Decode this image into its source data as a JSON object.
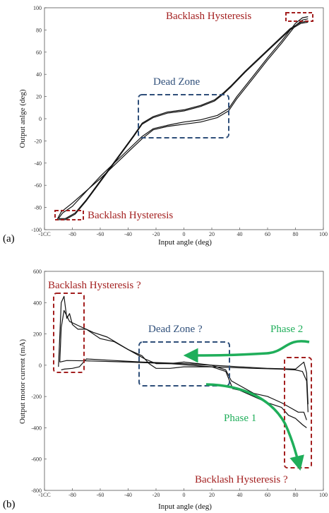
{
  "colors": {
    "trace": "#111111",
    "backlash": "#a31f1f",
    "deadzone": "#2f4f7a",
    "phase": "#1fae5a",
    "axis": "#555555"
  },
  "chart_data": [
    {
      "type": "line",
      "panel_label": "(a)",
      "xlabel": "Input angle (deg)",
      "ylabel": "Output anlge (deg)",
      "xlim": [
        -100,
        100
      ],
      "ylim": [
        -100,
        100
      ],
      "xticks": [
        -100,
        -80,
        -60,
        -40,
        -20,
        0,
        20,
        40,
        60,
        80,
        100
      ],
      "xtick_labels": [
        "-1CC",
        "-80",
        "-60",
        "-40",
        "-20",
        "0",
        "20",
        "40",
        "60",
        "80",
        "100"
      ],
      "yticks": [
        -100,
        -80,
        -60,
        -40,
        -20,
        0,
        20,
        40,
        60,
        80,
        100
      ],
      "ytick_labels": [
        "-100",
        "-80",
        "-60",
        "-40",
        "-20",
        "0",
        "20",
        "40",
        "60",
        "80",
        "100"
      ],
      "grid": false,
      "series": [
        {
          "values": [
            [
              -91,
              -91
            ],
            [
              -88,
              -84
            ],
            [
              -80,
              -76
            ],
            [
              -60,
              -54
            ],
            [
              -40,
              -30
            ],
            [
              -30,
              -18
            ],
            [
              -22,
              -10
            ],
            [
              -12,
              -7
            ],
            [
              0,
              -5
            ],
            [
              12,
              -3
            ],
            [
              24,
              1
            ],
            [
              32,
              7
            ],
            [
              38,
              18
            ],
            [
              50,
              37
            ],
            [
              60,
              53
            ],
            [
              70,
              68
            ],
            [
              80,
              84
            ],
            [
              85,
              89
            ],
            [
              89,
              90
            ]
          ]
        },
        {
          "values": [
            [
              89,
              87
            ],
            [
              84,
              86
            ],
            [
              76,
              80
            ],
            [
              60,
              61
            ],
            [
              44,
              42
            ],
            [
              34,
              29
            ],
            [
              28,
              22
            ],
            [
              22,
              16
            ],
            [
              12,
              11
            ],
            [
              0,
              7
            ],
            [
              -12,
              5
            ],
            [
              -22,
              1
            ],
            [
              -30,
              -5
            ],
            [
              -36,
              -16
            ],
            [
              -50,
              -40
            ],
            [
              -60,
              -57
            ],
            [
              -70,
              -74
            ],
            [
              -78,
              -86
            ],
            [
              -85,
              -91
            ],
            [
              -91,
              -91
            ]
          ]
        },
        {
          "values": [
            [
              -90,
              -90
            ],
            [
              -87,
              -85
            ],
            [
              -80,
              -79
            ],
            [
              -60,
              -52
            ],
            [
              -40,
              -28
            ],
            [
              -30,
              -16
            ],
            [
              -22,
              -9
            ],
            [
              -12,
              -6
            ],
            [
              0,
              -3
            ],
            [
              12,
              -1
            ],
            [
              24,
              3
            ],
            [
              32,
              9
            ],
            [
              38,
              20
            ],
            [
              50,
              39
            ],
            [
              60,
              55
            ],
            [
              70,
              70
            ],
            [
              80,
              86
            ],
            [
              85,
              91
            ],
            [
              89,
              92
            ]
          ]
        },
        {
          "values": [
            [
              89,
              88
            ],
            [
              84,
              87
            ],
            [
              76,
              81
            ],
            [
              60,
              62
            ],
            [
              44,
              43
            ],
            [
              34,
              30
            ],
            [
              28,
              23
            ],
            [
              22,
              17
            ],
            [
              12,
              12
            ],
            [
              0,
              8
            ],
            [
              -12,
              6
            ],
            [
              -22,
              2
            ],
            [
              -30,
              -4
            ],
            [
              -36,
              -15
            ],
            [
              -50,
              -39
            ],
            [
              -60,
              -56
            ],
            [
              -70,
              -73
            ],
            [
              -78,
              -85
            ],
            [
              -85,
              -90
            ],
            [
              -90,
              -90
            ]
          ]
        }
      ],
      "annotations": [
        {
          "text": "Backlash Hysteresis",
          "color": "backlash",
          "region": [
            [
              80,
              86
            ],
            [
              94,
              92
            ]
          ]
        },
        {
          "text": "Dead Zone",
          "color": "deadzone",
          "region": [
            [
              -32,
              -20
            ],
            [
              32,
              20
            ]
          ]
        },
        {
          "text": "Backlash Hysteresis",
          "color": "backlash",
          "region": [
            [
              -94,
              -95
            ],
            [
              -86,
              -88
            ]
          ]
        }
      ]
    },
    {
      "type": "line",
      "panel_label": "(b)",
      "xlabel": "Input angle (deg)",
      "ylabel": "Output motor current (mA)",
      "xlim": [
        -100,
        100
      ],
      "ylim": [
        -800,
        600
      ],
      "xticks": [
        -100,
        -80,
        -60,
        -40,
        -20,
        0,
        20,
        40,
        60,
        80,
        100
      ],
      "xtick_labels": [
        "-1CC",
        "-80",
        "-60",
        "-40",
        "-20",
        "0",
        "20",
        "40",
        "60",
        "80",
        "100"
      ],
      "yticks": [
        -800,
        -600,
        -400,
        -200,
        0,
        200,
        400,
        600
      ],
      "ytick_labels": [
        "-800",
        "-600",
        "-400",
        "-200",
        "0",
        "200",
        "400",
        "600"
      ],
      "grid": false,
      "series": [
        {
          "values": [
            [
              -90,
              -10
            ],
            [
              -88,
              400
            ],
            [
              -86,
              440
            ],
            [
              -84,
              300
            ],
            [
              -82,
              330
            ],
            [
              -80,
              260
            ],
            [
              -76,
              230
            ],
            [
              -70,
              230
            ],
            [
              -60,
              170
            ],
            [
              -50,
              150
            ],
            [
              -40,
              100
            ],
            [
              -30,
              60
            ],
            [
              -25,
              10
            ],
            [
              -20,
              -20
            ],
            [
              -10,
              -20
            ],
            [
              0,
              -10
            ],
            [
              10,
              -10
            ],
            [
              20,
              -10
            ],
            [
              30,
              -40
            ],
            [
              35,
              -150
            ],
            [
              40,
              -160
            ],
            [
              50,
              -200
            ],
            [
              60,
              -240
            ],
            [
              70,
              -270
            ],
            [
              75,
              -320
            ],
            [
              80,
              -340
            ],
            [
              85,
              -380
            ],
            [
              88,
              -400
            ]
          ]
        },
        {
          "values": [
            [
              88,
              -350
            ],
            [
              86,
              -300
            ],
            [
              82,
              -300
            ],
            [
              78,
              -280
            ],
            [
              70,
              -240
            ],
            [
              60,
              -200
            ],
            [
              50,
              -180
            ],
            [
              40,
              -130
            ],
            [
              34,
              -100
            ],
            [
              30,
              -30
            ],
            [
              20,
              0
            ],
            [
              10,
              10
            ],
            [
              0,
              20
            ],
            [
              -10,
              10
            ],
            [
              -20,
              10
            ],
            [
              -28,
              40
            ],
            [
              -40,
              100
            ],
            [
              -55,
              180
            ],
            [
              -65,
              210
            ],
            [
              -75,
              250
            ],
            [
              -82,
              280
            ],
            [
              -86,
              350
            ],
            [
              -88,
              240
            ],
            [
              -89,
              20
            ]
          ]
        },
        {
          "values": [
            [
              -89,
              20
            ],
            [
              -84,
              30
            ],
            [
              -70,
              28
            ],
            [
              -40,
              20
            ],
            [
              -10,
              10
            ],
            [
              20,
              -10
            ],
            [
              50,
              -20
            ],
            [
              70,
              -25
            ],
            [
              80,
              -30
            ],
            [
              85,
              -40
            ],
            [
              88,
              -100
            ],
            [
              89,
              -300
            ]
          ]
        },
        {
          "values": [
            [
              -88,
              -30
            ],
            [
              -86,
              -25
            ],
            [
              -80,
              -20
            ],
            [
              -75,
              -10
            ],
            [
              -70,
              40
            ],
            [
              -50,
              30
            ],
            [
              -30,
              20
            ],
            [
              0,
              10
            ],
            [
              30,
              -5
            ],
            [
              60,
              -20
            ],
            [
              80,
              -25
            ],
            [
              86,
              20
            ],
            [
              88,
              -50
            ],
            [
              89,
              -250
            ]
          ]
        }
      ],
      "annotations": [
        {
          "text": "Backlash Hysteresis ?",
          "color": "backlash",
          "region": [
            [
              -95,
              -60
            ],
            [
              -75,
              460
            ]
          ]
        },
        {
          "text": "Dead Zone ?",
          "color": "deadzone",
          "region": [
            [
              -34,
              -140
            ],
            [
              34,
              150
            ]
          ]
        },
        {
          "text": "Backlash Hysteresis ?",
          "color": "backlash",
          "region": [
            [
              75,
              -650
            ],
            [
              95,
              60
            ]
          ]
        },
        {
          "text": "Phase 2",
          "color": "phase"
        },
        {
          "text": "Phase 1",
          "color": "phase"
        }
      ]
    }
  ]
}
